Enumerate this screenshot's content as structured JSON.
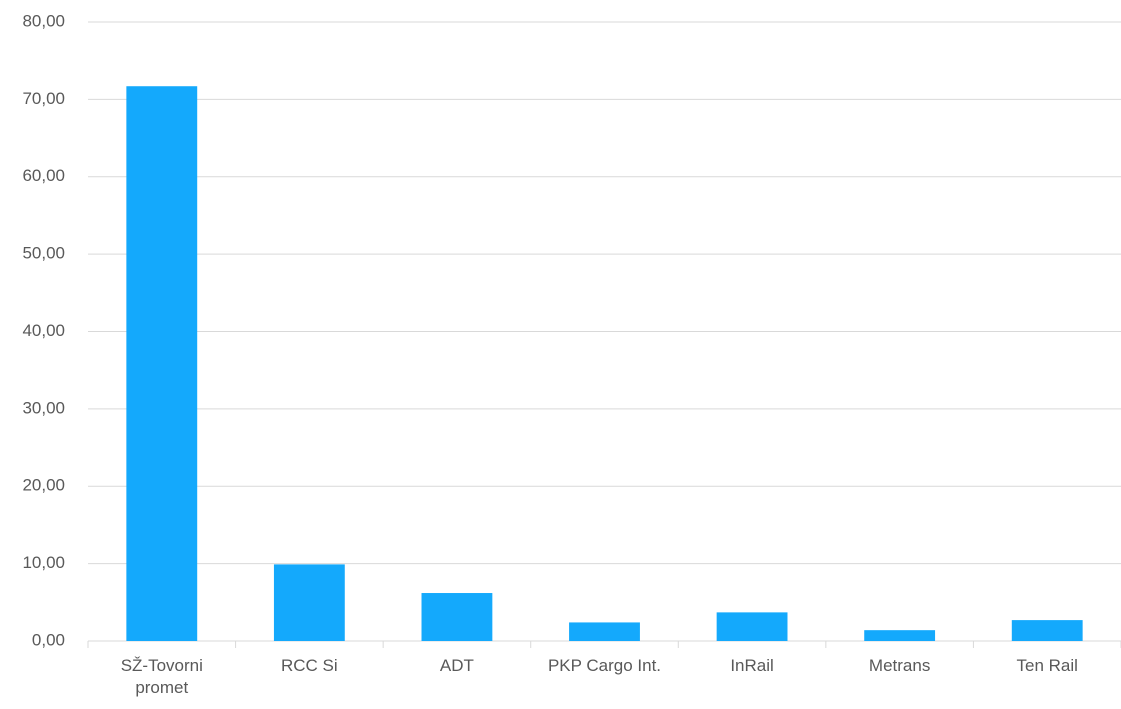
{
  "chart_data": {
    "type": "bar",
    "categories": [
      "SŽ-Tovorni promet",
      "RCC Si",
      "ADT",
      "PKP Cargo Int.",
      "InRail",
      "Metrans",
      "Ten Rail"
    ],
    "values": [
      71.7,
      9.9,
      6.2,
      2.4,
      3.7,
      1.4,
      2.7
    ],
    "color": "#14a9fc",
    "ylim": [
      0,
      80
    ],
    "yticks": [
      {
        "value": 0,
        "label": "0,00"
      },
      {
        "value": 10,
        "label": "10,00"
      },
      {
        "value": 20,
        "label": "20,00"
      },
      {
        "value": 30,
        "label": "30,00"
      },
      {
        "value": 40,
        "label": "40,00"
      },
      {
        "value": 50,
        "label": "50,00"
      },
      {
        "value": 60,
        "label": "60,00"
      },
      {
        "value": 70,
        "label": "70,00"
      },
      {
        "value": 80,
        "label": "80,00"
      }
    ],
    "grid": true
  }
}
